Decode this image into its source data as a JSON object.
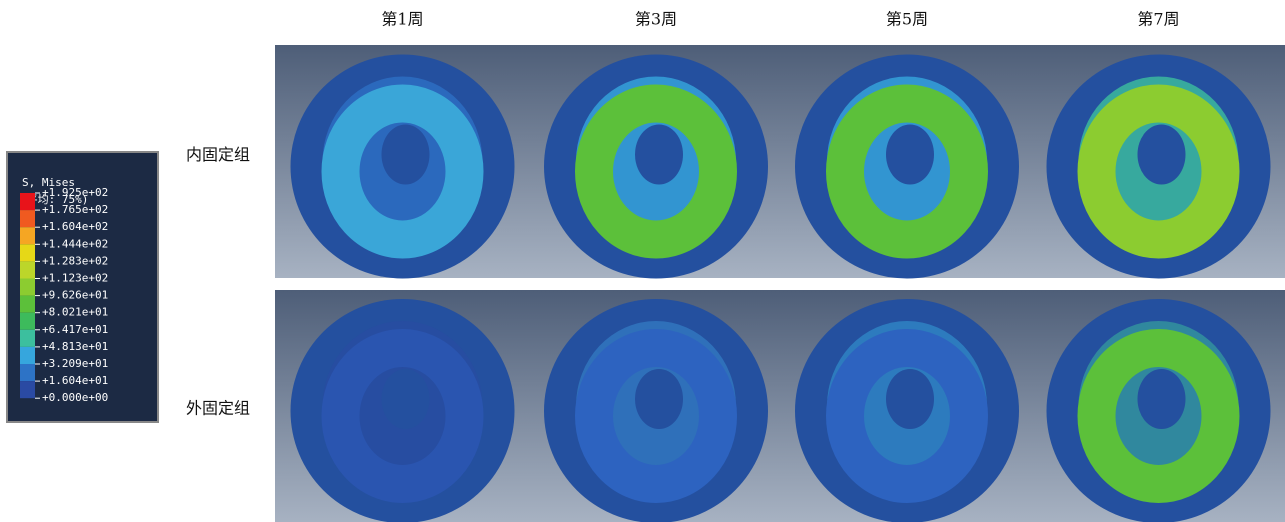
{
  "columns": [
    "第1周",
    "第3周",
    "第5周",
    "第7周"
  ],
  "rows": [
    "内固定组",
    "外固定组"
  ],
  "legend": {
    "title": "S, Mises",
    "subtitle": "(平均: 75%)",
    "labels": [
      "+1.925e+02",
      "+1.765e+02",
      "+1.604e+02",
      "+1.444e+02",
      "+1.283e+02",
      "+1.123e+02",
      "+9.626e+01",
      "+8.021e+01",
      "+6.417e+01",
      "+4.813e+01",
      "+3.209e+01",
      "+1.604e+01",
      "+0.000e+00"
    ],
    "colors": [
      "#e8131a",
      "#f05a20",
      "#f5a623",
      "#e6d817",
      "#bcd62a",
      "#8ccc30",
      "#5cc03a",
      "#3dbb5c",
      "#3cbf9e",
      "#36a6dd",
      "#2d73c6",
      "#2a4aa3"
    ]
  }
}
